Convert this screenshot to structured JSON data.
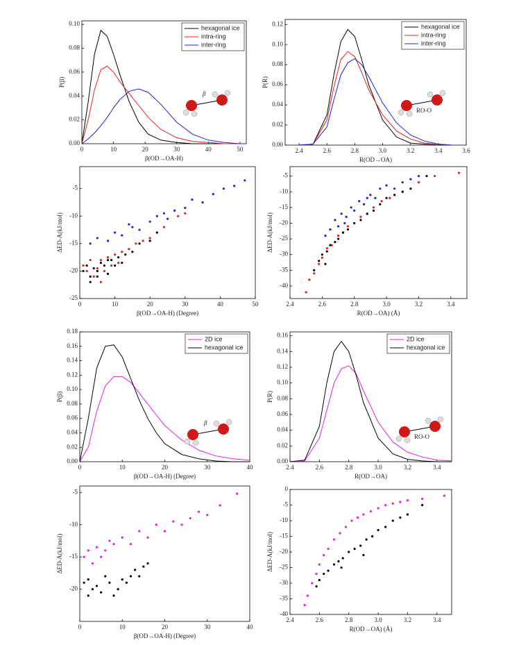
{
  "chart_data": [
    {
      "type": "line",
      "x_label": "β(OD→OA-H)",
      "y_label": "P(β)",
      "annotation": "β",
      "legend": "upper right",
      "xlim": [
        0,
        52
      ],
      "xticks": [
        0,
        10,
        20,
        30,
        40,
        50
      ],
      "ylim": [
        0,
        0.103
      ],
      "yticks": [
        {
          "value": 0,
          "label": "0.00"
        },
        {
          "value": 0.02,
          "label": "0.02"
        },
        {
          "value": 0.04,
          "label": "0.04"
        },
        {
          "value": 0.06,
          "label": "0.06"
        },
        {
          "value": 0.08,
          "label": "0.08"
        },
        {
          "value": 0.1,
          "label": "0.10"
        }
      ],
      "x": [
        0,
        2,
        4,
        6,
        8,
        10,
        12,
        15,
        18,
        21,
        25,
        30,
        35,
        40,
        45,
        50
      ],
      "series": [
        {
          "name": "hexagonal ice",
          "color": "#000000",
          "values": [
            0,
            0.035,
            0.075,
            0.095,
            0.09,
            0.075,
            0.058,
            0.035,
            0.018,
            0.008,
            0.003,
            0.001,
            0,
            0,
            0,
            0
          ]
        },
        {
          "name": "intra-ring",
          "color": "#e02020",
          "values": [
            0,
            0.02,
            0.045,
            0.062,
            0.065,
            0.06,
            0.052,
            0.042,
            0.032,
            0.022,
            0.012,
            0.005,
            0.002,
            0.001,
            0,
            0
          ]
        },
        {
          "name": "inter-ring",
          "color": "#2020e0",
          "values": [
            0,
            0.004,
            0.009,
            0.015,
            0.022,
            0.03,
            0.037,
            0.044,
            0.046,
            0.043,
            0.033,
            0.018,
            0.008,
            0.003,
            0.001,
            0
          ]
        }
      ]
    },
    {
      "type": "line",
      "x_label": "R(OD→OA)",
      "y_label": "P(R)",
      "annotation": "RO-O",
      "legend": "upper right",
      "xlim": [
        2.3,
        3.6
      ],
      "xticks": [
        2.4,
        2.6,
        2.8,
        {
          "value": 3,
          "label": "3.0"
        },
        3.2,
        3.4,
        3.6
      ],
      "ylim": [
        0,
        0.125
      ],
      "yticks": [
        {
          "value": 0,
          "label": "0.00"
        },
        {
          "value": 0.02,
          "label": "0.02"
        },
        {
          "value": 0.04,
          "label": "0.04"
        },
        {
          "value": 0.06,
          "label": "0.06"
        },
        {
          "value": 0.08,
          "label": "0.08"
        },
        {
          "value": 0.1,
          "label": "0.10"
        },
        {
          "value": 0.12,
          "label": "0.12"
        }
      ],
      "x": [
        2.4,
        2.5,
        2.6,
        2.65,
        2.7,
        2.75,
        2.8,
        2.85,
        2.9,
        3.0,
        3.1,
        3.2,
        3.3,
        3.4,
        3.5
      ],
      "series": [
        {
          "name": "hexagonal ice",
          "color": "#000000",
          "values": [
            0,
            0.001,
            0.03,
            0.07,
            0.103,
            0.115,
            0.108,
            0.085,
            0.06,
            0.025,
            0.008,
            0.002,
            0.001,
            0,
            0
          ]
        },
        {
          "name": "intra-ring",
          "color": "#e02020",
          "values": [
            0,
            0.001,
            0.025,
            0.058,
            0.085,
            0.093,
            0.088,
            0.072,
            0.055,
            0.03,
            0.014,
            0.006,
            0.002,
            0.001,
            0
          ]
        },
        {
          "name": "inter-ring",
          "color": "#2020e0",
          "values": [
            0,
            0.001,
            0.018,
            0.045,
            0.07,
            0.082,
            0.086,
            0.08,
            0.068,
            0.042,
            0.022,
            0.01,
            0.004,
            0.001,
            0
          ]
        }
      ]
    },
    {
      "type": "scatter",
      "x_label": "β(OD→OA-H) (Degree)",
      "y_label": "ΔED-A(kJ/mol)",
      "xlim": [
        0,
        50
      ],
      "xticks": [
        0,
        10,
        20,
        30,
        40,
        50
      ],
      "ylim": [
        -25,
        -1
      ],
      "yticks": [
        -25,
        -20,
        -15,
        -10,
        -5
      ],
      "series": [
        {
          "color": "#2020e0",
          "x": [
            3,
            5,
            8,
            10,
            12,
            15,
            17,
            20,
            22,
            25,
            27,
            30,
            32,
            35,
            38,
            41,
            44,
            47,
            14,
            24
          ],
          "values": [
            -15,
            -14,
            -14.5,
            -13,
            -13.5,
            -12,
            -12.5,
            -11,
            -10,
            -10.5,
            -9,
            -8.5,
            -7,
            -7.5,
            -6,
            -5,
            -4.5,
            -3.5,
            -11.5,
            -9.5
          ]
        },
        {
          "color": "#e02020",
          "x": [
            1,
            2,
            3,
            4,
            5,
            6,
            7,
            8,
            9,
            10,
            12,
            14,
            16,
            18,
            20,
            24,
            28,
            30,
            6,
            11
          ],
          "values": [
            -19,
            -20,
            -18,
            -21,
            -19.5,
            -18,
            -20,
            -17.5,
            -19,
            -17,
            -16.5,
            -16,
            -15,
            -14.5,
            -14,
            -12,
            -10,
            -9.5,
            -22,
            -18.5
          ]
        },
        {
          "color": "#000000",
          "x": [
            1,
            2,
            3,
            4,
            5,
            6,
            7,
            8,
            9,
            10,
            11,
            13,
            15,
            17,
            20,
            3,
            5,
            8,
            12,
            22
          ],
          "values": [
            -20,
            -19,
            -21,
            -19.5,
            -20,
            -18.5,
            -19,
            -20.5,
            -18,
            -19,
            -17.5,
            -17,
            -16.5,
            -15,
            -14.5,
            -22,
            -21,
            -18,
            -18.5,
            -13
          ]
        }
      ]
    },
    {
      "type": "scatter",
      "x_label": "R(OD→OA) (Å)",
      "y_label": "ΔED-A(kJ/mol)",
      "xlim": [
        2.4,
        3.5
      ],
      "xticks": [
        2.4,
        2.6,
        2.8,
        {
          "value": 3,
          "label": "3.0"
        },
        3.2,
        3.4
      ],
      "ylim": [
        -44,
        -2
      ],
      "yticks": [
        -40,
        -35,
        -30,
        -25,
        -20,
        -15,
        -10,
        -5
      ],
      "series": [
        {
          "color": "#2020e0",
          "x": [
            2.62,
            2.65,
            2.68,
            2.7,
            2.72,
            2.75,
            2.78,
            2.8,
            2.83,
            2.86,
            2.9,
            2.93,
            2.96,
            3.0,
            3.05,
            3.1,
            3.15,
            3.2,
            2.74,
            2.88
          ],
          "values": [
            -24,
            -22,
            -19,
            -21,
            -17,
            -18,
            -15,
            -16,
            -13,
            -14,
            -11,
            -12,
            -9,
            -8,
            -9,
            -7,
            -6,
            -5,
            -20,
            -12
          ]
        },
        {
          "color": "#e02020",
          "x": [
            2.5,
            2.52,
            2.55,
            2.58,
            2.6,
            2.63,
            2.66,
            2.7,
            2.73,
            2.76,
            2.8,
            2.84,
            2.88,
            2.92,
            2.97,
            3.02,
            3.1,
            3.2,
            3.3,
            3.45
          ],
          "values": [
            -42,
            -38,
            -36,
            -33,
            -31,
            -28,
            -27,
            -24,
            -23,
            -21,
            -20,
            -18,
            -17,
            -15,
            -13,
            -12,
            -10,
            -7,
            -5,
            -4
          ]
        },
        {
          "color": "#000000",
          "x": [
            2.55,
            2.58,
            2.6,
            2.63,
            2.65,
            2.68,
            2.7,
            2.73,
            2.76,
            2.8,
            2.84,
            2.88,
            2.92,
            2.96,
            3.0,
            3.05,
            3.1,
            3.15,
            3.25,
            2.62
          ],
          "values": [
            -35,
            -32,
            -30,
            -29,
            -27,
            -26,
            -25,
            -23,
            -22,
            -20,
            -19,
            -17,
            -16,
            -14,
            -12,
            -11,
            -10,
            -9,
            -5,
            -33
          ]
        }
      ]
    },
    {
      "type": "line",
      "x_label": "β(OD→OA-H) (Degree)",
      "y_label": "P(β)",
      "annotation": "β",
      "legend": "upper right",
      "xlim": [
        0,
        40
      ],
      "xticks": [
        0,
        10,
        20,
        30,
        40
      ],
      "ylim": [
        0,
        0.18
      ],
      "yticks": [
        {
          "value": 0,
          "label": "0.00"
        },
        {
          "value": 0.02,
          "label": "0.02"
        },
        {
          "value": 0.04,
          "label": "0.04"
        },
        {
          "value": 0.06,
          "label": "0.06"
        },
        {
          "value": 0.08,
          "label": "0.08"
        },
        {
          "value": 0.1,
          "label": "0.10"
        },
        {
          "value": 0.12,
          "label": "0.12"
        },
        {
          "value": 0.14,
          "label": "0.14"
        },
        {
          "value": 0.16,
          "label": "0.16"
        },
        {
          "value": 0.18,
          "label": "0.18"
        }
      ],
      "x": [
        0,
        2,
        4,
        6,
        8,
        10,
        12,
        14,
        16,
        18,
        20,
        24,
        28,
        32,
        36,
        40
      ],
      "series": [
        {
          "name": "2D ice",
          "color": "#e020e0",
          "values": [
            0,
            0.02,
            0.07,
            0.105,
            0.118,
            0.118,
            0.11,
            0.095,
            0.08,
            0.065,
            0.05,
            0.03,
            0.016,
            0.008,
            0.004,
            0.002
          ]
        },
        {
          "name": "hexagonal ice",
          "color": "#000000",
          "values": [
            0,
            0.06,
            0.13,
            0.16,
            0.162,
            0.145,
            0.115,
            0.085,
            0.06,
            0.04,
            0.025,
            0.01,
            0.004,
            0.001,
            0,
            0
          ]
        }
      ]
    },
    {
      "type": "line",
      "x_label": "R(OD→OA)",
      "y_label": "P(R)",
      "annotation": "RO-O",
      "legend": "upper right",
      "xlim": [
        2.4,
        3.5
      ],
      "xticks": [
        2.4,
        2.6,
        2.8,
        {
          "value": 3,
          "label": "3.0"
        },
        3.2,
        3.4
      ],
      "ylim": [
        0,
        0.165
      ],
      "yticks": [
        {
          "value": 0,
          "label": "0.00"
        },
        {
          "value": 0.02,
          "label": "0.02"
        },
        {
          "value": 0.04,
          "label": "0.04"
        },
        {
          "value": 0.06,
          "label": "0.06"
        },
        {
          "value": 0.08,
          "label": "0.08"
        },
        {
          "value": 0.1,
          "label": "0.10"
        },
        {
          "value": 0.12,
          "label": "0.12"
        },
        {
          "value": 0.14,
          "label": "0.14"
        },
        {
          "value": 0.16,
          "label": "0.16"
        }
      ],
      "x": [
        2.4,
        2.5,
        2.6,
        2.65,
        2.7,
        2.75,
        2.8,
        2.85,
        2.9,
        3.0,
        3.1,
        3.2,
        3.3,
        3.4,
        3.5
      ],
      "series": [
        {
          "name": "2D ice",
          "color": "#e020e0",
          "values": [
            0,
            0.001,
            0.03,
            0.065,
            0.1,
            0.118,
            0.122,
            0.112,
            0.09,
            0.05,
            0.025,
            0.012,
            0.006,
            0.002,
            0.001
          ]
        },
        {
          "name": "hexagonal ice",
          "color": "#000000",
          "values": [
            0,
            0.002,
            0.045,
            0.1,
            0.14,
            0.153,
            0.14,
            0.11,
            0.075,
            0.03,
            0.01,
            0.003,
            0.001,
            0,
            0
          ]
        }
      ]
    },
    {
      "type": "scatter",
      "x_label": "β(OD→OA-H) (Degree)",
      "y_label": "ΔED-A(kJ/mol)",
      "xlim": [
        0,
        40
      ],
      "xticks": [
        0,
        10,
        20,
        30,
        40
      ],
      "ylim": [
        -25,
        -4
      ],
      "yticks": [
        -20,
        -15,
        -10,
        -5
      ],
      "series": [
        {
          "color": "#e020e0",
          "x": [
            1,
            2,
            3,
            4,
            5,
            6,
            7,
            8,
            10,
            12,
            14,
            16,
            18,
            20,
            22,
            24,
            26,
            28,
            30,
            33,
            37
          ],
          "values": [
            -15,
            -14,
            -16,
            -13.5,
            -15,
            -14,
            -12.5,
            -13,
            -12,
            -13,
            -11,
            -12,
            -10,
            -11,
            -9.5,
            -10,
            -9,
            -8,
            -8.5,
            -7,
            -5.2
          ]
        },
        {
          "color": "#000000",
          "x": [
            1,
            2,
            2,
            3,
            4,
            5,
            6,
            7,
            8,
            9,
            10,
            11,
            12,
            13,
            14,
            15,
            16
          ],
          "values": [
            -19,
            -21,
            -18.5,
            -20,
            -19.5,
            -20.5,
            -18,
            -19,
            -21,
            -20,
            -18.5,
            -19,
            -18,
            -17,
            -18,
            -16.5,
            -16
          ]
        }
      ]
    },
    {
      "type": "scatter",
      "x_label": "R(OD→OA) (Å)",
      "y_label": "ΔED-A(kJ/mol)",
      "xlim": [
        2.4,
        3.5
      ],
      "xticks": [
        2.4,
        2.6,
        2.8,
        {
          "value": 3,
          "label": "3.0"
        },
        3.2,
        3.4
      ],
      "ylim": [
        -40,
        0
      ],
      "yticks": [
        -40,
        -35,
        -30,
        -25,
        -20,
        -15,
        -10,
        -5,
        0
      ],
      "series": [
        {
          "color": "#e020e0",
          "x": [
            2.5,
            2.52,
            2.55,
            2.58,
            2.6,
            2.63,
            2.66,
            2.7,
            2.74,
            2.78,
            2.82,
            2.86,
            2.9,
            2.95,
            3.0,
            3.05,
            3.1,
            3.15,
            3.2,
            3.3,
            3.45
          ],
          "values": [
            -37,
            -34,
            -30,
            -27,
            -24,
            -21,
            -19,
            -16,
            -14,
            -12,
            -10,
            -9,
            -8,
            -7,
            -6,
            -5,
            -4.5,
            -4,
            -3.5,
            -3,
            -2
          ]
        },
        {
          "color": "#000000",
          "x": [
            2.58,
            2.6,
            2.63,
            2.66,
            2.7,
            2.73,
            2.76,
            2.8,
            2.84,
            2.88,
            2.92,
            2.96,
            3.0,
            3.05,
            3.1,
            3.15,
            3.2,
            3.3,
            2.75,
            2.9
          ],
          "values": [
            -31,
            -29,
            -27,
            -26,
            -24,
            -23,
            -22,
            -20,
            -19,
            -18,
            -16,
            -15,
            -13,
            -12,
            -10,
            -9,
            -8,
            -5,
            -25,
            -21
          ]
        }
      ]
    }
  ]
}
